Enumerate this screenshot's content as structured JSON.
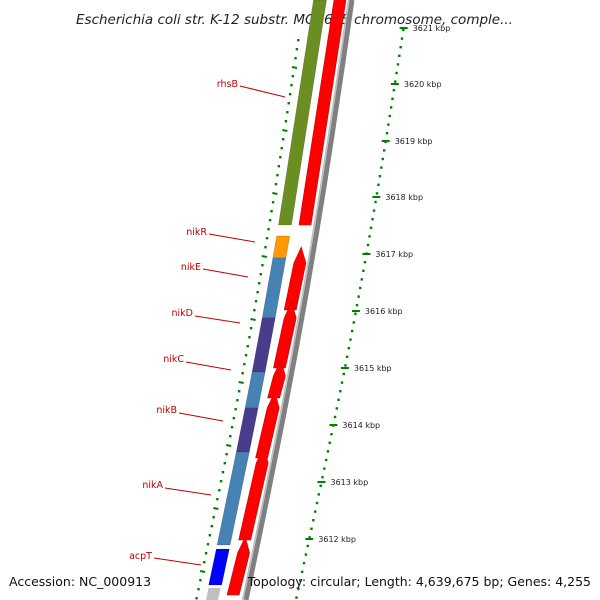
{
  "title": "Escherichia coli str. K-12 substr. MG1655 chromosome, comple...",
  "footer": {
    "accession": "Accession: NC_000913",
    "summary": "Topology: circular; Length: 4,639,675 bp; Genes: 4,255"
  },
  "ticks": [
    {
      "label": "3621 kbp",
      "faded": true
    },
    {
      "label": "3620 kbp"
    },
    {
      "label": "3619 kbp"
    },
    {
      "label": "3618 kbp"
    },
    {
      "label": "3617 kbp"
    },
    {
      "label": "3616 kbp"
    },
    {
      "label": "3615 kbp"
    },
    {
      "label": "3614 kbp"
    },
    {
      "label": "3613 kbp"
    },
    {
      "label": "3612 kbp"
    }
  ],
  "genes": [
    {
      "name": "rhsB",
      "color": "#6b8e23"
    },
    {
      "name": "nikR",
      "color": "#ff9900"
    },
    {
      "name": "nikE",
      "color": "#4682b4"
    },
    {
      "name": "nikD",
      "color": "#483d8b"
    },
    {
      "name": "nikC",
      "color": "#4682b4"
    },
    {
      "name": "nikB",
      "color": "#483d8b"
    },
    {
      "name": "nikA",
      "color": "#4682b4"
    },
    {
      "name": "acpT",
      "color": "#0000ff"
    }
  ],
  "colors": {
    "cds_track": "#ff0000",
    "backbone": "#808080",
    "tick_marks": "#008000",
    "label_leader": "#c00000"
  }
}
